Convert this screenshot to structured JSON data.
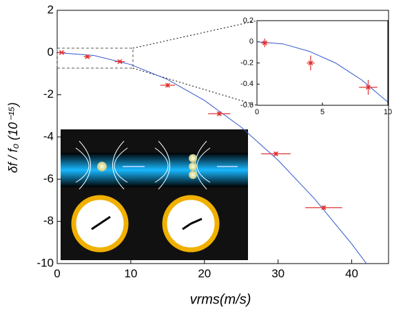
{
  "chart_data": [
    {
      "type": "scatter",
      "xlabel": "vrms(m/s)",
      "ylabel": "δf / f₀ (10⁻¹⁵)",
      "x": [
        0.6,
        4.1,
        8.5,
        15,
        22,
        29.7,
        36.2
      ],
      "y": [
        0.0,
        -0.2,
        -0.43,
        -1.55,
        -2.9,
        -4.8,
        -7.35
      ],
      "xerr": [
        0.5,
        0.5,
        0.7,
        1.0,
        1.5,
        2.0,
        2.5
      ],
      "yerr": [
        0.04,
        0.07,
        0.07,
        0.1,
        0.1,
        0.1,
        0.1
      ],
      "color": "#e03030",
      "fit": {
        "x": [
          0,
          5,
          10,
          15,
          20,
          25,
          30,
          35,
          40,
          42
        ],
        "y": [
          0,
          -0.14,
          -0.57,
          -1.28,
          -2.27,
          -3.54,
          -5.1,
          -6.95,
          -9.07,
          -10.0
        ],
        "color": "#3355cc"
      },
      "xlim": [
        0,
        45
      ],
      "ylim": [
        -10,
        2
      ],
      "xticks": [
        0,
        10,
        20,
        30,
        40
      ],
      "yticks": [
        -10,
        -8,
        -6,
        -4,
        -2,
        0,
        2
      ]
    },
    {
      "type": "scatter",
      "x": [
        0.6,
        4.1,
        8.5
      ],
      "y": [
        -0.01,
        -0.2,
        -0.43
      ],
      "xerr": [
        0.3,
        0.3,
        0.7
      ],
      "yerr": [
        0.04,
        0.07,
        0.07
      ],
      "color": "#e03030",
      "fit": {
        "x": [
          0,
          2,
          4,
          6,
          8,
          10
        ],
        "y": [
          0,
          -0.02,
          -0.09,
          -0.2,
          -0.36,
          -0.57
        ],
        "color": "#3355cc"
      },
      "xlim": [
        0,
        10
      ],
      "ylim": [
        -0.6,
        0.2
      ],
      "xticks": [
        0,
        5,
        10
      ],
      "yticks": [
        -0.6,
        -0.4,
        -0.2,
        0,
        0.2
      ]
    }
  ]
}
